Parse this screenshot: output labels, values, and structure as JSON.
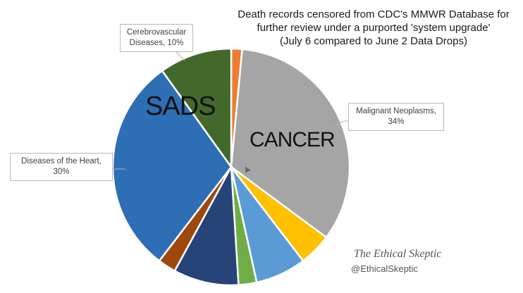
{
  "chart_data": {
    "type": "pie",
    "title": [
      "Death records censored from CDC's MMWR Database for",
      "further review under a purported 'system upgrade'",
      "(July 6 compared to June 2 Data Drops)"
    ],
    "slices": [
      {
        "label": "",
        "value": 1.5,
        "color": "#ED7D31"
      },
      {
        "label": "Malignant Neoplasms, 34%",
        "value": 34,
        "color": "#A5A5A5"
      },
      {
        "label": "",
        "value": 4.5,
        "color": "#FFC000"
      },
      {
        "label": "",
        "value": 7,
        "color": "#5B9BD5"
      },
      {
        "label": "",
        "value": 2.5,
        "color": "#70AD47"
      },
      {
        "label": "",
        "value": 9,
        "color": "#264478"
      },
      {
        "label": "",
        "value": 2.5,
        "color": "#9E480E"
      },
      {
        "label": "Diseases of the Heart, 30%",
        "value": 30,
        "color": "#2E6EB5"
      },
      {
        "label": "Cerebrovascular Diseases, 10%",
        "value": 10,
        "color": "#43682B"
      }
    ],
    "annotations": [
      "SADS",
      "CANCER"
    ]
  },
  "callouts": {
    "malignant": [
      "Malignant Neoplasms,",
      "34%"
    ],
    "heart": [
      "Diseases of the Heart,",
      "30%"
    ],
    "cerebro": [
      "Cerebrovascular",
      "Diseases, 10%"
    ]
  },
  "watermark": {
    "name": "The Ethical Skeptic",
    "handle": "@EthicalSkeptic"
  }
}
